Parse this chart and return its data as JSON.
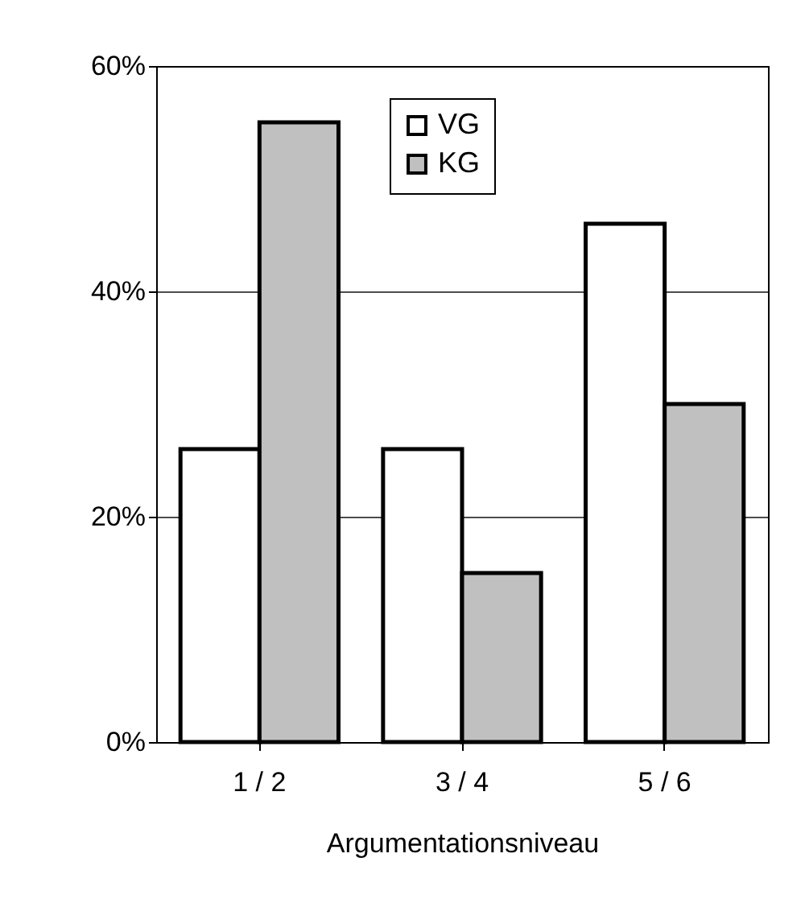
{
  "chart_data": {
    "type": "bar",
    "xlabel": "Argumentationsniveau",
    "categories": [
      "1 / 2",
      "3 / 4",
      "5 / 6"
    ],
    "series": [
      {
        "name": "VG",
        "color": "#ffffff",
        "values": [
          26,
          26,
          46
        ]
      },
      {
        "name": "KG",
        "color": "#c0c0c0",
        "values": [
          55,
          15,
          30
        ]
      }
    ],
    "ylim": [
      0,
      60
    ],
    "yticks": [
      {
        "value": 0,
        "label": "0%"
      },
      {
        "value": 20,
        "label": "20%"
      },
      {
        "value": 40,
        "label": "40%"
      },
      {
        "value": 60,
        "label": "60%"
      }
    ],
    "grid": "y",
    "legend": "top"
  }
}
